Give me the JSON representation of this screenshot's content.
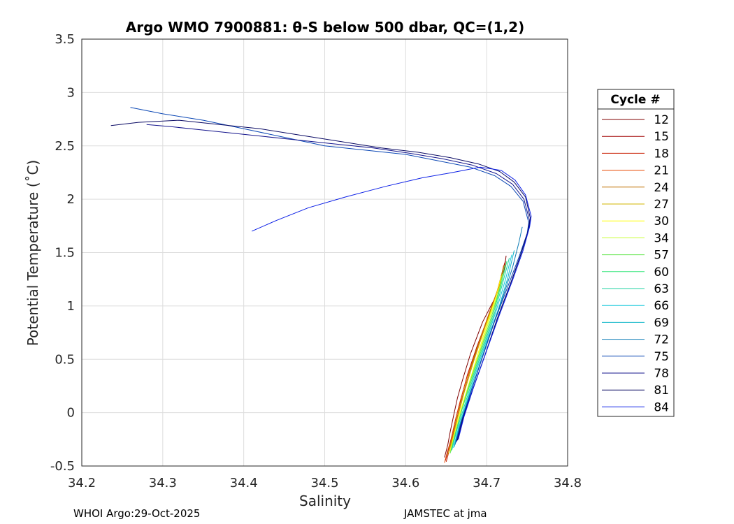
{
  "chart_data": {
    "type": "line",
    "title": "Argo WMO 7900881: θ-S below 500 dbar,  QC=(1,2)",
    "xlabel": "Salinity",
    "ylabel": "Potential Temperature (˚C)",
    "xlim": [
      34.2,
      34.8
    ],
    "ylim": [
      -0.5,
      3.5
    ],
    "xticks": [
      "34.2",
      "34.3",
      "34.4",
      "34.5",
      "34.6",
      "34.7",
      "34.8"
    ],
    "yticks": [
      "-0.5",
      "0",
      "0.5",
      "1",
      "1.5",
      "2",
      "2.5",
      "3",
      "3.5"
    ],
    "grid": true,
    "legend": {
      "title": "Cycle #",
      "placement": "right"
    },
    "series": [
      {
        "name": "12",
        "color": "#800000",
        "s": [
          34.648,
          34.652,
          34.655,
          34.66,
          34.664,
          34.67,
          34.68,
          34.695,
          34.712,
          34.722,
          34.724
        ],
        "t": [
          -0.42,
          -0.3,
          -0.18,
          0.0,
          0.14,
          0.3,
          0.55,
          0.85,
          1.1,
          1.35,
          1.47
        ]
      },
      {
        "name": "15",
        "color": "#a00000",
        "s": [
          34.649,
          34.653,
          34.657,
          34.662,
          34.668,
          34.676,
          34.688,
          34.703,
          34.716,
          34.723
        ],
        "t": [
          -0.45,
          -0.34,
          -0.22,
          -0.05,
          0.12,
          0.35,
          0.62,
          0.92,
          1.2,
          1.42
        ]
      },
      {
        "name": "18",
        "color": "#c81e00",
        "s": [
          34.65,
          34.654,
          34.658,
          34.663,
          34.669,
          34.678,
          34.69,
          34.704,
          34.717,
          34.722
        ],
        "t": [
          -0.46,
          -0.35,
          -0.22,
          -0.06,
          0.12,
          0.36,
          0.64,
          0.94,
          1.22,
          1.4
        ]
      },
      {
        "name": "21",
        "color": "#e84800",
        "s": [
          34.648,
          34.651,
          34.656,
          34.661,
          34.667,
          34.676,
          34.689,
          34.703,
          34.716,
          34.721
        ],
        "t": [
          -0.47,
          -0.38,
          -0.25,
          -0.08,
          0.1,
          0.34,
          0.63,
          0.93,
          1.2,
          1.38
        ]
      },
      {
        "name": "24",
        "color": "#c07000",
        "s": [
          34.652,
          34.656,
          34.661,
          34.667,
          34.675,
          34.686,
          34.7,
          34.713,
          34.72
        ],
        "t": [
          -0.4,
          -0.28,
          -0.12,
          0.06,
          0.28,
          0.56,
          0.86,
          1.14,
          1.34
        ]
      },
      {
        "name": "27",
        "color": "#d2b400",
        "s": [
          34.653,
          34.658,
          34.664,
          34.672,
          34.684,
          34.698,
          34.711,
          34.719
        ],
        "t": [
          -0.38,
          -0.25,
          -0.05,
          0.18,
          0.48,
          0.8,
          1.08,
          1.3
        ]
      },
      {
        "name": "30",
        "color": "#ffff00",
        "s": [
          34.655,
          34.66,
          34.667,
          34.676,
          34.688,
          34.7,
          34.712,
          34.718
        ],
        "t": [
          -0.36,
          -0.2,
          0.0,
          0.22,
          0.52,
          0.82,
          1.1,
          1.28
        ]
      },
      {
        "name": "34",
        "color": "#c8ff30",
        "s": [
          34.656,
          34.661,
          34.668,
          34.677,
          34.69,
          34.702,
          34.714,
          34.72
        ],
        "t": [
          -0.36,
          -0.2,
          0.0,
          0.24,
          0.54,
          0.84,
          1.12,
          1.3
        ]
      },
      {
        "name": "57",
        "color": "#64e650",
        "s": [
          34.655,
          34.661,
          34.669,
          34.68,
          34.694,
          34.706,
          34.716,
          34.722
        ],
        "t": [
          -0.38,
          -0.2,
          0.02,
          0.3,
          0.62,
          0.9,
          1.16,
          1.38
        ]
      },
      {
        "name": "60",
        "color": "#32e678",
        "s": [
          34.656,
          34.662,
          34.67,
          34.682,
          34.696,
          34.708,
          34.718,
          34.725
        ],
        "t": [
          -0.36,
          -0.18,
          0.04,
          0.32,
          0.64,
          0.92,
          1.2,
          1.42
        ]
      },
      {
        "name": "63",
        "color": "#1ed2a0",
        "s": [
          34.657,
          34.663,
          34.672,
          34.684,
          34.698,
          34.71,
          34.72,
          34.728
        ],
        "t": [
          -0.35,
          -0.17,
          0.05,
          0.34,
          0.66,
          0.94,
          1.22,
          1.45
        ]
      },
      {
        "name": "66",
        "color": "#14c8dc",
        "s": [
          34.659,
          34.665,
          34.674,
          34.686,
          34.7,
          34.712,
          34.723,
          34.731
        ],
        "t": [
          -0.33,
          -0.15,
          0.07,
          0.36,
          0.68,
          0.96,
          1.24,
          1.48
        ]
      },
      {
        "name": "69",
        "color": "#0ab4c8",
        "s": [
          34.66,
          34.666,
          34.675,
          34.688,
          34.702,
          34.715,
          34.726,
          34.734
        ],
        "t": [
          -0.32,
          -0.14,
          0.08,
          0.37,
          0.7,
          0.98,
          1.26,
          1.52
        ]
      },
      {
        "name": "72",
        "color": "#0a7ab4",
        "s": [
          34.661,
          34.668,
          34.678,
          34.691,
          34.706,
          34.72,
          34.732,
          34.74,
          34.744
        ],
        "t": [
          -0.3,
          -0.1,
          0.14,
          0.44,
          0.78,
          1.08,
          1.36,
          1.6,
          1.74
        ]
      },
      {
        "name": "75",
        "color": "#0a46b4",
        "s": [
          34.662,
          34.669,
          34.68,
          34.694,
          34.71,
          34.726,
          34.74,
          34.75,
          34.752,
          34.745,
          34.73,
          34.71,
          34.68,
          34.64,
          34.6,
          34.55,
          34.5,
          34.45,
          34.4,
          34.35,
          34.3,
          34.26
        ],
        "t": [
          -0.28,
          -0.08,
          0.18,
          0.5,
          0.86,
          1.18,
          1.46,
          1.68,
          1.78,
          1.98,
          2.12,
          2.22,
          2.3,
          2.36,
          2.42,
          2.46,
          2.5,
          2.58,
          2.66,
          2.74,
          2.8,
          2.86
        ]
      },
      {
        "name": "78",
        "color": "#14148c",
        "s": [
          34.663,
          34.67,
          34.682,
          34.697,
          34.713,
          34.729,
          34.742,
          34.751,
          34.753,
          34.746,
          34.732,
          34.712,
          34.682,
          34.645,
          34.605,
          34.56,
          34.51,
          34.46,
          34.41,
          34.36,
          34.31,
          34.28
        ],
        "t": [
          -0.27,
          -0.06,
          0.2,
          0.52,
          0.88,
          1.2,
          1.48,
          1.7,
          1.8,
          2.0,
          2.14,
          2.24,
          2.32,
          2.38,
          2.43,
          2.48,
          2.52,
          2.56,
          2.6,
          2.64,
          2.68,
          2.7
        ]
      },
      {
        "name": "81",
        "color": "#0a0a64",
        "s": [
          34.664,
          34.671,
          34.683,
          34.698,
          34.714,
          34.73,
          34.743,
          34.752,
          34.754,
          34.748,
          34.734,
          34.716,
          34.69,
          34.655,
          34.615,
          34.57,
          34.52,
          34.47,
          34.42,
          34.37,
          34.32,
          34.27,
          34.236
        ],
        "t": [
          -0.26,
          -0.05,
          0.22,
          0.54,
          0.9,
          1.22,
          1.5,
          1.72,
          1.82,
          2.02,
          2.16,
          2.26,
          2.33,
          2.39,
          2.44,
          2.48,
          2.54,
          2.6,
          2.66,
          2.7,
          2.74,
          2.72,
          2.69
        ]
      },
      {
        "name": "84",
        "color": "#0a1ee6",
        "s": [
          34.665,
          34.672,
          34.684,
          34.699,
          34.716,
          34.732,
          34.745,
          34.753,
          34.755,
          34.748,
          34.735,
          34.718,
          34.692,
          34.658,
          34.62,
          34.575,
          34.525,
          34.48,
          34.44,
          34.41
        ],
        "t": [
          -0.25,
          -0.04,
          0.24,
          0.56,
          0.92,
          1.24,
          1.52,
          1.74,
          1.84,
          2.04,
          2.18,
          2.27,
          2.3,
          2.25,
          2.2,
          2.12,
          2.02,
          1.92,
          1.8,
          1.7
        ]
      }
    ]
  },
  "footer": {
    "left": "WHOI Argo:29-Oct-2025",
    "right": "JAMSTEC at jma"
  }
}
